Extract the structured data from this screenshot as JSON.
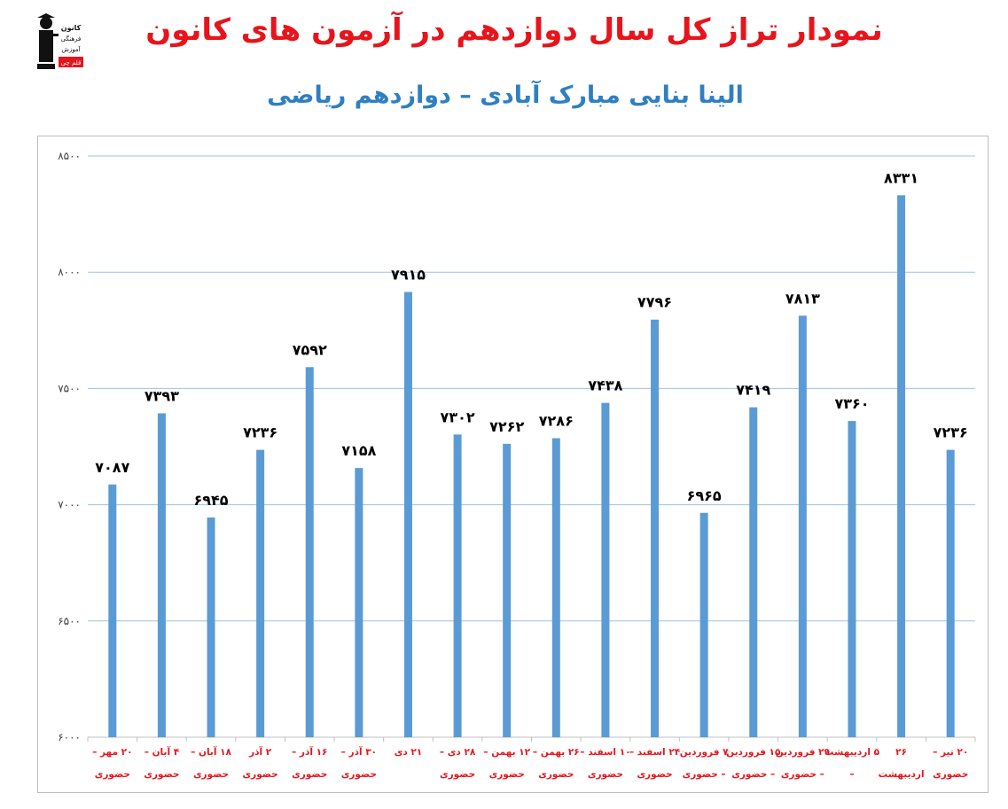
{
  "header": {
    "title": "نمودار تراز کل سال دوازدهم در آزمون های کانون",
    "subtitle": "الینا بنایی مبارک آبادی – دوازدهم ریاضی",
    "logo_text": [
      "کانون",
      "فرهنگی",
      "آموزش",
      "قلم چی"
    ]
  },
  "colors": {
    "bar": "#5b9bd5",
    "title": "#e8141b",
    "subtitle": "#2f7fc1",
    "grid": "#9dc3e6",
    "category": "#e8141b"
  },
  "chart_data": {
    "type": "bar",
    "title": "",
    "ylim": [
      6000,
      8500
    ],
    "yticks": [
      6000,
      6500,
      7000,
      7500,
      8000,
      8500
    ],
    "ytick_labels": [
      "۶۰۰۰",
      "۶۵۰۰",
      "۷۰۰۰",
      "۷۵۰۰",
      "۸۰۰۰",
      "۸۵۰۰"
    ],
    "grid": true,
    "categories": [
      [
        "۲۰ مهر –",
        "حضوری"
      ],
      [
        "۴ آبان –",
        "حضوری"
      ],
      [
        "۱۸ آبان –",
        "حضوری"
      ],
      [
        "۲ آذر",
        "حضوری"
      ],
      [
        "۱۶ آذر –",
        "حضوری"
      ],
      [
        "۳۰ آذر –",
        "حضوری"
      ],
      [
        "۲۱ دی",
        ""
      ],
      [
        "۲۸ دی –",
        "حضوری"
      ],
      [
        "۱۲ بهمن –",
        "حضوری"
      ],
      [
        "۲۶ بهمن –",
        "حضوری"
      ],
      [
        "۱۰ اسفند –",
        "حضوری"
      ],
      [
        "۲۴ اسفند –",
        "حضوری"
      ],
      [
        "۷ فروردین",
        "– حضوری"
      ],
      [
        "۱۵ فروردین",
        "– حضوری"
      ],
      [
        "۲۹ فروردین",
        "– حضوری"
      ],
      [
        "۵ اردیبهشت",
        "–"
      ],
      [
        "۲۶",
        "اردیبهشت"
      ],
      [
        "۲۰ تیر –",
        "حضوری"
      ]
    ],
    "values": [
      7087,
      7393,
      6945,
      7236,
      7592,
      7158,
      7915,
      7302,
      7262,
      7286,
      7438,
      7796,
      6965,
      7419,
      7813,
      7360,
      8331,
      7236
    ],
    "value_labels": [
      "۷۰۸۷",
      "۷۳۹۳",
      "۶۹۴۵",
      "۷۲۳۶",
      "۷۵۹۲",
      "۷۱۵۸",
      "۷۹۱۵",
      "۷۳۰۲",
      "۷۲۶۲",
      "۷۲۸۶",
      "۷۴۳۸",
      "۷۷۹۶",
      "۶۹۶۵",
      "۷۴۱۹",
      "۷۸۱۳",
      "۷۳۶۰",
      "۸۳۳۱",
      "۷۲۳۶"
    ]
  }
}
